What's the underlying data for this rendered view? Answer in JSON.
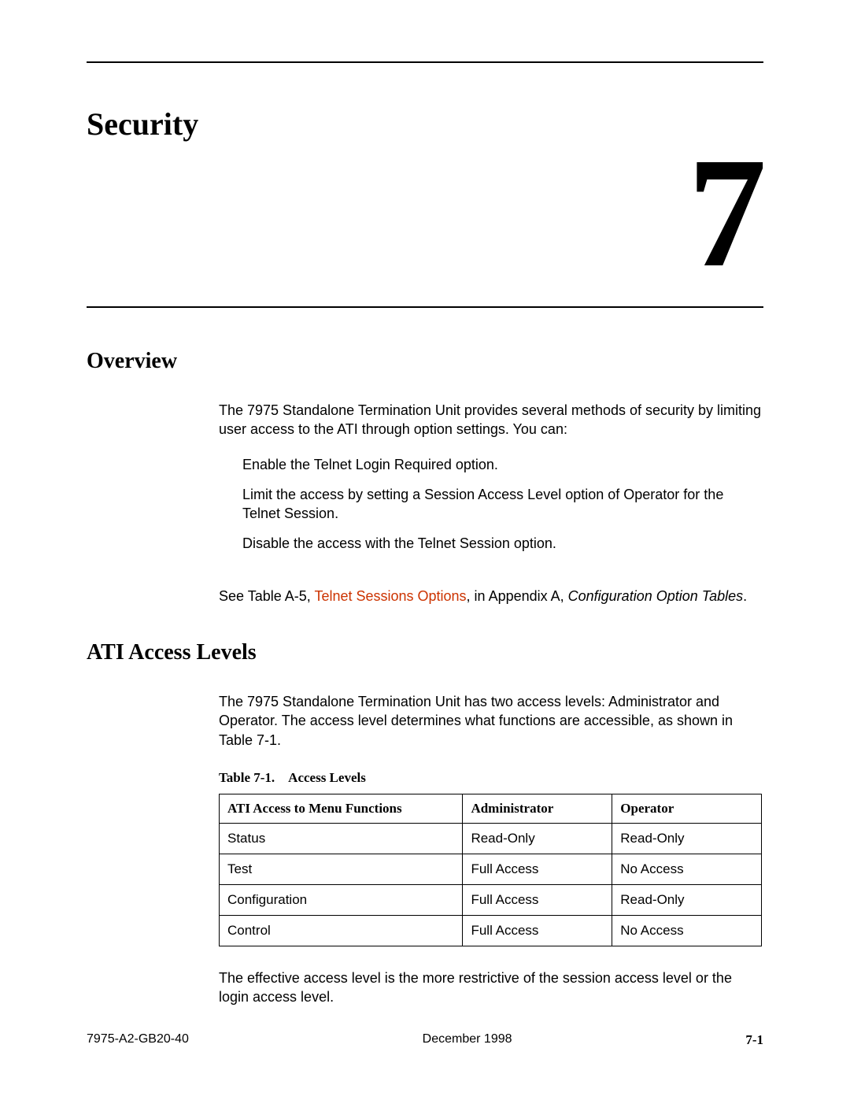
{
  "chapter": {
    "title": "Security",
    "number": "7"
  },
  "overview": {
    "heading": "Overview",
    "intro": "The 7975 Standalone Termination Unit provides several methods of security by limiting user access to the ATI through option settings. You can:",
    "bullets": [
      "Enable the Telnet Login Required option.",
      "Limit the access by setting a Session Access Level option of Operator for the Telnet Session.",
      "Disable the access with the Telnet Session option."
    ],
    "see_prefix": "See Table A-5, ",
    "see_link": "Telnet Sessions Options",
    "see_mid": ", in Appendix A, ",
    "see_italic": "Configuration Option Tables",
    "see_suffix": "."
  },
  "access_levels": {
    "heading": "ATI Access Levels",
    "intro": "The 7975 Standalone Termination Unit has two access levels: Administrator and Operator. The access level determines what functions are accessible, as shown in Table 7-1.",
    "table_caption": "Table 7-1. Access Levels",
    "columns": [
      "ATI Access to Menu Functions",
      "Administrator",
      "Operator"
    ],
    "rows": [
      [
        "Status",
        "Read-Only",
        "Read-Only"
      ],
      [
        "Test",
        "Full Access",
        "No Access"
      ],
      [
        "Configuration",
        "Full Access",
        "Read-Only"
      ],
      [
        "Control",
        "Full Access",
        "No Access"
      ]
    ],
    "footer_text": "The effective access level is the more restrictive of the session access level or the login access level."
  },
  "footer": {
    "doc_id": "7975-A2-GB20-40",
    "date": "December 1998",
    "page": "7-1"
  },
  "colors": {
    "link_color": "#cc3300",
    "text_color": "#000000",
    "background": "#ffffff"
  }
}
